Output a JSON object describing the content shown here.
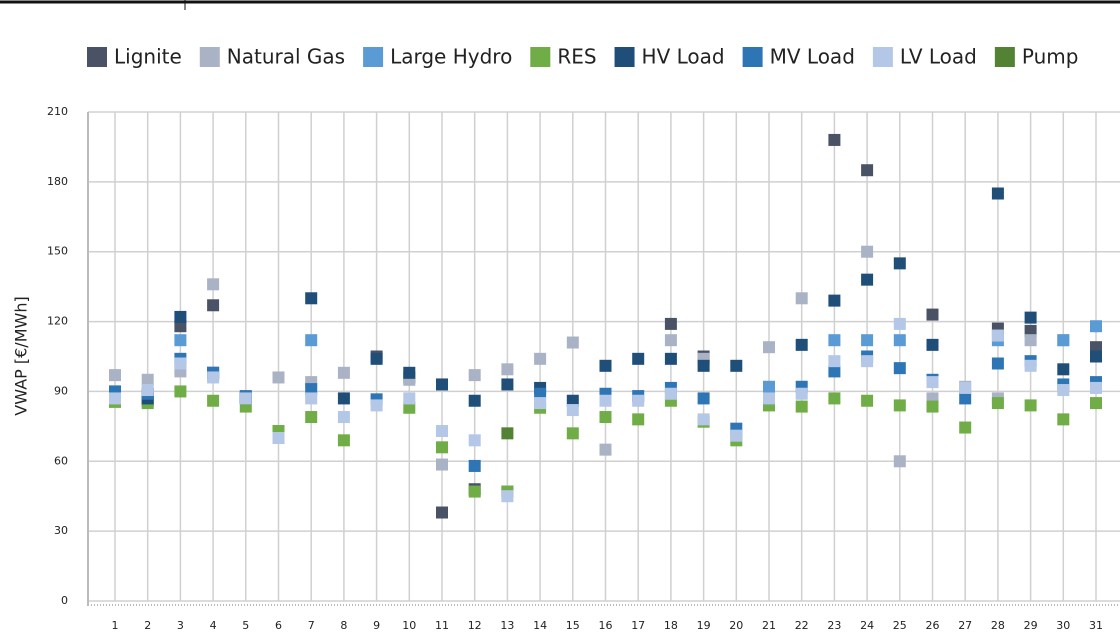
{
  "chart_data": {
    "type": "scatter",
    "y_label": "VWAP [€/MWh]",
    "categories": [
      "1",
      "2",
      "3",
      "4",
      "5",
      "6",
      "7",
      "8",
      "9",
      "10",
      "11",
      "12",
      "13",
      "14",
      "15",
      "16",
      "17",
      "18",
      "19",
      "20",
      "21",
      "22",
      "23",
      "24",
      "25",
      "26",
      "27",
      "28",
      "29",
      "30",
      "31"
    ],
    "ylim": [
      0,
      210
    ],
    "yticks": [
      0,
      30,
      60,
      90,
      120,
      150,
      180,
      210
    ],
    "grid": true,
    "legend": "top",
    "series": [
      {
        "name": "Lignite",
        "color": "#4a5366",
        "values": [
          89,
          86,
          118,
          127,
          87.5,
          null,
          null,
          null,
          105,
          96,
          38,
          48,
          null,
          null,
          null,
          null,
          null,
          119,
          105,
          null,
          85,
          null,
          198,
          185,
          null,
          123,
          null,
          117,
          116,
          null,
          109
        ]
      },
      {
        "name": "Natural Gas",
        "color": "#aab3c5",
        "values": [
          97,
          95,
          98.6,
          136,
          87,
          96,
          94,
          98,
          null,
          95,
          58.6,
          97,
          99.5,
          104,
          111,
          65,
          null,
          112,
          104,
          null,
          109,
          130,
          null,
          150,
          60,
          87,
          92,
          87,
          112,
          112,
          null
        ]
      },
      {
        "name": "Large Hydro",
        "color": "#5b9bd5",
        "values": [
          90,
          89,
          112,
          97,
          87.5,
          null,
          112,
          null,
          null,
          null,
          null,
          null,
          47,
          null,
          null,
          null,
          null,
          null,
          null,
          null,
          92,
          null,
          112,
          112,
          112,
          null,
          null,
          112,
          null,
          112,
          118
        ]
      },
      {
        "name": "RES",
        "color": "#70ad47",
        "values": [
          85.5,
          85,
          90,
          86,
          83.5,
          73,
          79,
          69,
          null,
          83,
          66,
          47,
          47,
          83,
          72,
          79,
          78,
          86,
          77,
          69,
          84,
          83.5,
          87,
          86,
          84,
          83.5,
          74.5,
          85,
          84,
          78,
          85
        ]
      },
      {
        "name": "HV Load",
        "color": "#1f4e79",
        "values": [
          89,
          87,
          122,
          98,
          87,
          null,
          130,
          87,
          104,
          98,
          93,
          86,
          93,
          91.5,
          86,
          101,
          104,
          104,
          101,
          101,
          null,
          110,
          129,
          138,
          145,
          110,
          null,
          175,
          121.7,
          99.5,
          105
        ]
      },
      {
        "name": "MV Load",
        "color": "#2e75b6",
        "values": [
          90,
          89,
          104,
          98,
          88,
          null,
          91,
          null,
          86.6,
          null,
          null,
          58,
          null,
          89,
          null,
          89,
          88,
          91.5,
          87,
          74,
          87,
          92,
          98.6,
          105,
          100,
          95,
          87,
          102,
          103,
          93,
          94
        ]
      },
      {
        "name": "LV Load",
        "color": "#b4c7e7",
        "values": [
          87,
          90.6,
          102,
          96,
          87,
          70,
          87,
          79,
          84,
          87,
          73,
          69,
          45,
          85,
          82,
          86,
          86,
          89,
          78,
          71,
          87,
          89,
          103,
          103,
          119,
          94,
          91.5,
          114,
          101,
          90.6,
          91.5
        ]
      },
      {
        "name": "Pump",
        "color": "#548235",
        "values": [
          null,
          null,
          null,
          null,
          null,
          null,
          null,
          null,
          null,
          null,
          null,
          null,
          72,
          null,
          null,
          null,
          null,
          null,
          null,
          null,
          null,
          null,
          null,
          null,
          null,
          null,
          null,
          null,
          null,
          null,
          null
        ]
      }
    ]
  }
}
